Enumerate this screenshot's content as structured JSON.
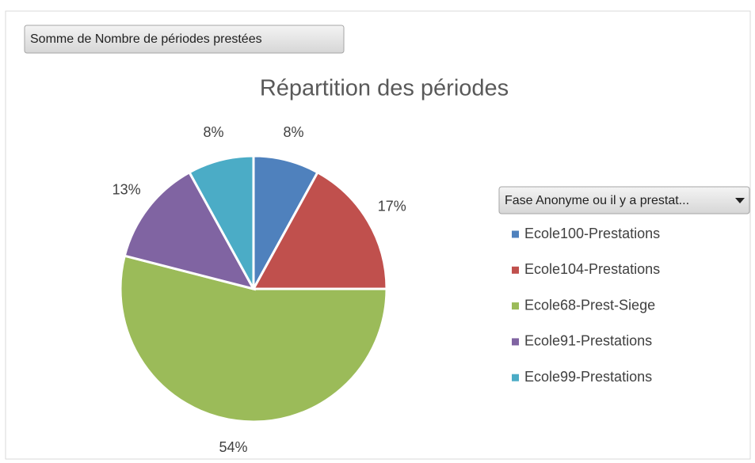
{
  "chart_data": {
    "type": "pie",
    "field_button": "Somme de Nombre de périodes prestées",
    "title": "Répartition des périodes",
    "legend_title": "Fase Anonyme ou il y a prestat...",
    "categories": [
      "Ecole100-Prestations",
      "Ecole104-Prestations",
      "Ecole68-Prest-Siege",
      "Ecole91-Prestations",
      "Ecole99-Prestations"
    ],
    "values": [
      8,
      17,
      54,
      13,
      8
    ],
    "value_labels": [
      "8%",
      "17%",
      "54%",
      "13%",
      "8%"
    ],
    "colors": [
      "#4f81bd",
      "#c0504d",
      "#9bbb59",
      "#8064a2",
      "#4bacc6"
    ],
    "legend": "right"
  }
}
